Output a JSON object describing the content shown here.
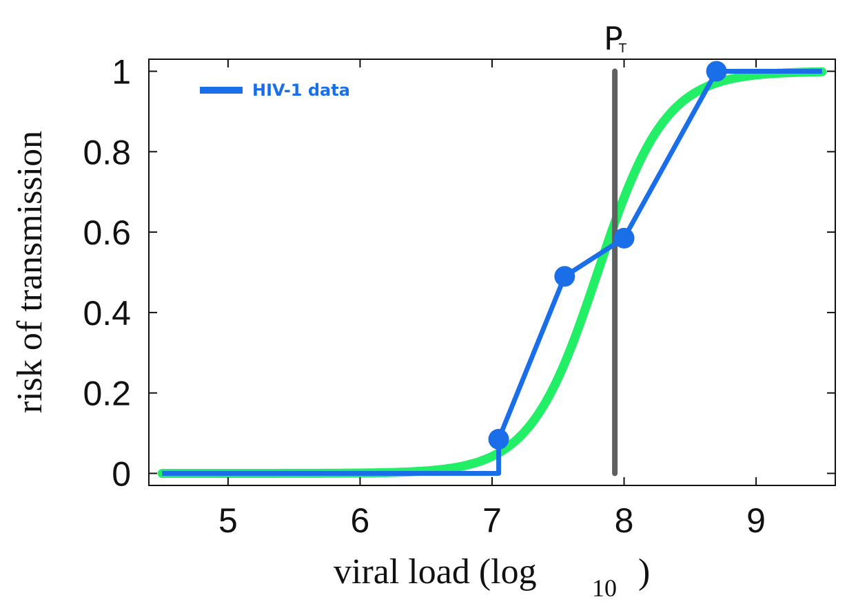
{
  "chart_data": {
    "type": "line",
    "xlabel": "viral load (log",
    "xlabel_sub": "10",
    "xlabel_end": ")",
    "ylabel": "risk of transmission",
    "xlim": [
      4.4,
      9.6
    ],
    "ylim": [
      -0.03,
      1.03
    ],
    "x_ticks": [
      5,
      6,
      7,
      8,
      9
    ],
    "y_ticks": [
      0,
      0.2,
      0.4,
      0.6,
      0.8,
      1
    ],
    "y_tick_labels": [
      "0",
      "0.2",
      "0.4",
      "0.6",
      "0.8",
      "1"
    ],
    "legend": {
      "position": "top-left",
      "entries": [
        "HIV-1 data"
      ]
    },
    "threshold": {
      "label": "P",
      "label_sub": "T",
      "x": 7.93,
      "color": "#606060"
    },
    "fit_curve": {
      "midpoint": 7.8,
      "slope": 3.9,
      "x_range": [
        4.5,
        9.5
      ],
      "color": "#22ee66"
    },
    "series": [
      {
        "name": "HIV-1 data",
        "color": "#1a6fe8",
        "x": [
          4.5,
          7.05,
          7.05,
          7.55,
          8.0,
          8.7,
          9.5
        ],
        "y": [
          0,
          0,
          0.085,
          0.49,
          0.585,
          1.0,
          1.0
        ],
        "markers_x": [
          7.05,
          7.55,
          8.0,
          8.7
        ],
        "markers_y": [
          0.085,
          0.49,
          0.585,
          1.0
        ]
      }
    ]
  }
}
